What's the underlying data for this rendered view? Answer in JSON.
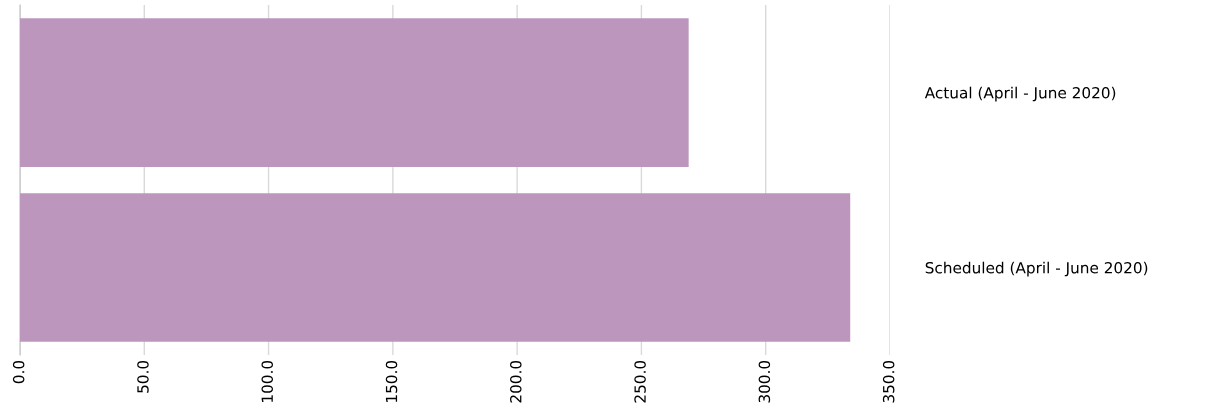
{
  "chart_data": {
    "type": "bar",
    "orientation": "horizontal",
    "categories": [
      "Actual (April - June 2020)",
      "Scheduled (April - June 2020)"
    ],
    "values": [
      269,
      334
    ],
    "color": "#bc96bc",
    "xlim": [
      0,
      350
    ],
    "xticks": [
      {
        "value": 0,
        "label": "0.0"
      },
      {
        "value": 50,
        "label": "50.0"
      },
      {
        "value": 100,
        "label": "100.0"
      },
      {
        "value": 150,
        "label": "150.0"
      },
      {
        "value": 200,
        "label": "200.0"
      },
      {
        "value": 250,
        "label": "250.0"
      },
      {
        "value": 300,
        "label": "300.0"
      },
      {
        "value": 350,
        "label": "350.0"
      }
    ],
    "grid": "x",
    "legend": false
  }
}
